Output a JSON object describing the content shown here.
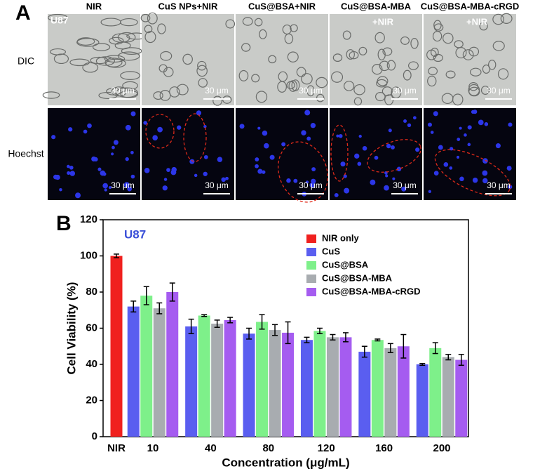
{
  "panel_a": {
    "label": "A",
    "columns": [
      {
        "title": "NIR"
      },
      {
        "title": "CuS NPs+NIR"
      },
      {
        "title": "CuS@BSA+NIR"
      },
      {
        "title": "CuS@BSA-MBA",
        "subtitle": "+NIR"
      },
      {
        "title": "CuS@BSA-MBA-cRGD",
        "subtitle": "+NIR"
      }
    ],
    "rows": [
      "DIC",
      "Hoechst"
    ],
    "cell_line": "U87",
    "scale_bar": "30 μm"
  },
  "chart_data": {
    "type": "bar",
    "panel_label": "B",
    "annotation": "U87",
    "xlabel": "Concentration (μg/mL)",
    "ylabel": "Cell Viability (%)",
    "categories": [
      "NIR",
      "10",
      "40",
      "80",
      "120",
      "160",
      "200"
    ],
    "ylim": [
      0,
      120
    ],
    "yticks": [
      0,
      20,
      40,
      60,
      80,
      100,
      120
    ],
    "legend": "upper right",
    "series": [
      {
        "name": "NIR only",
        "color": "#f0201e",
        "values": [
          100,
          null,
          null,
          null,
          null,
          null,
          null
        ],
        "errors": [
          1,
          null,
          null,
          null,
          null,
          null,
          null
        ]
      },
      {
        "name": "CuS",
        "color": "#5a5ef0",
        "values": [
          null,
          72,
          61,
          57,
          53.5,
          47,
          40
        ],
        "errors": [
          null,
          3,
          4,
          3,
          1.5,
          3,
          0.5
        ]
      },
      {
        "name": "CuS@BSA",
        "color": "#7ef08a",
        "values": [
          null,
          78,
          67,
          63.5,
          58.5,
          53.5,
          49
        ],
        "errors": [
          null,
          5,
          0.5,
          4,
          1.5,
          0.5,
          3
        ]
      },
      {
        "name": "CuS@BSA-MBA",
        "color": "#a8acb0",
        "values": [
          null,
          71,
          62.5,
          59,
          55,
          49,
          44
        ],
        "errors": [
          null,
          3,
          2,
          3,
          1.5,
          2.5,
          1.5
        ]
      },
      {
        "name": "CuS@BSA-MBA-cRGD",
        "color": "#a55cf0",
        "values": [
          null,
          80,
          64.5,
          57.5,
          55,
          50,
          42.5
        ],
        "errors": [
          null,
          5,
          1.5,
          6,
          2.5,
          6.5,
          3
        ]
      }
    ]
  }
}
